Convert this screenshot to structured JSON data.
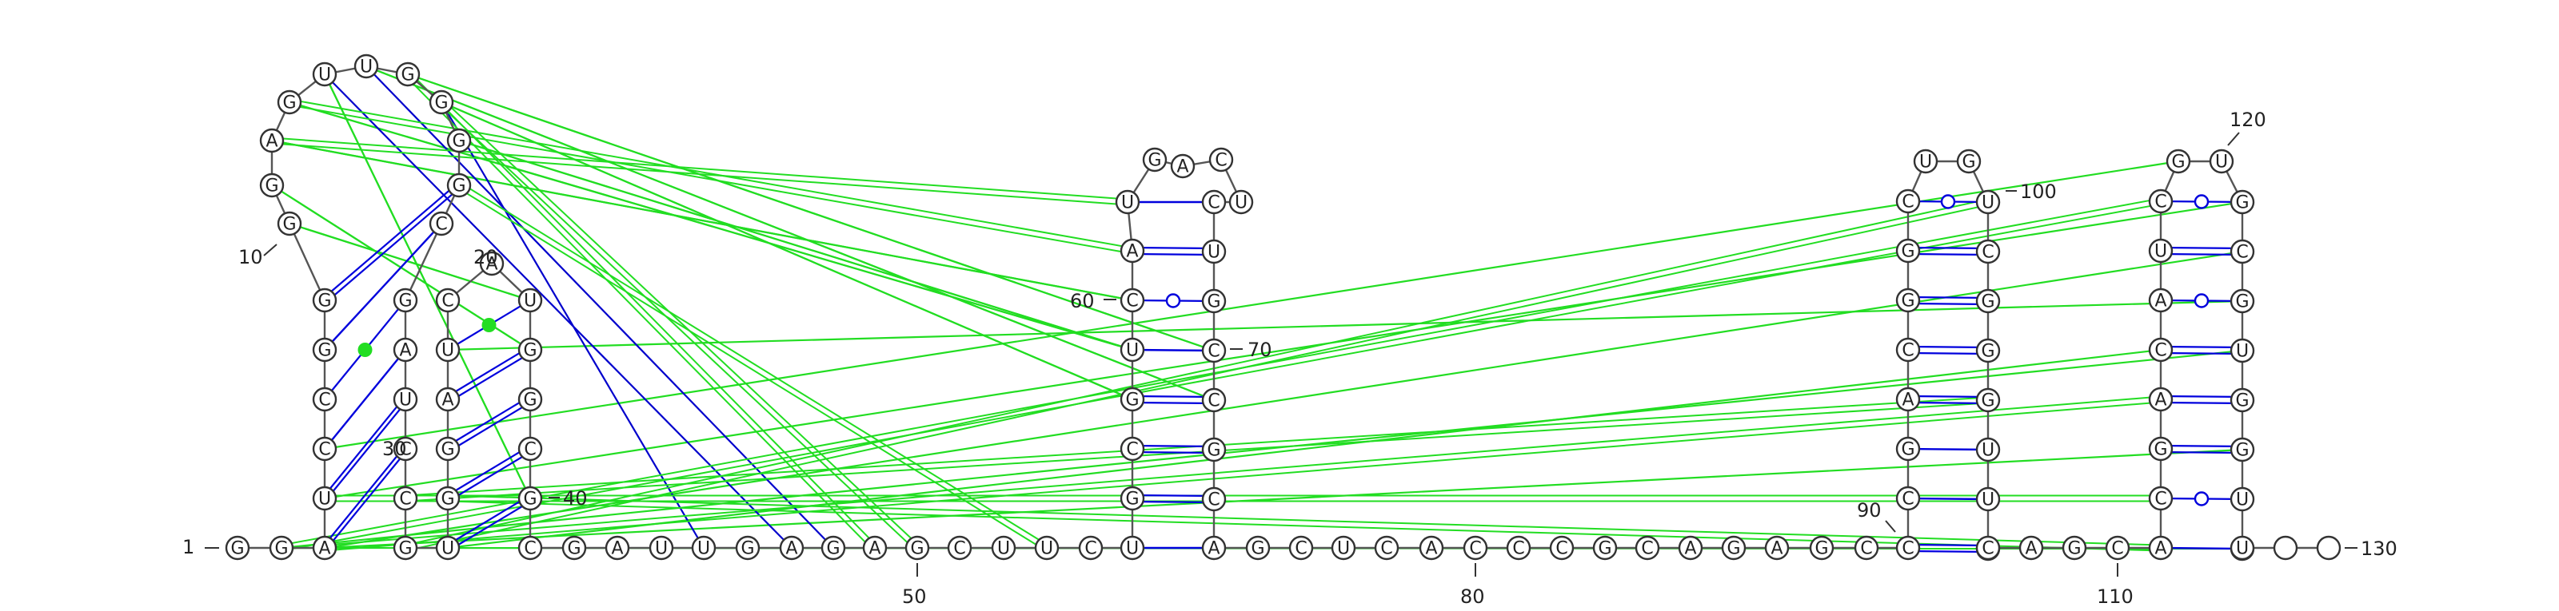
{
  "colors": {
    "canonical_pair": "#0000dd",
    "noncanonical_pair": "#0000dd",
    "interaction_line": "#22dd22",
    "interaction_line_blue": "#0000cc",
    "circle_stroke": "#333333"
  },
  "sequence": "GGAUCCGGGGAGUUGGGGCGAUCCGUGGAUCAUGGCGCGAUUGAGAGCUUCUGCGUCAUGACUCUGCCGCAGCUCACCCGCAGAGCCCGACGGCUGUCGGGUUGCAGCACGACAUCGUGCGUGGUCU",
  "numbers": [
    {
      "value": "1"
    },
    {
      "value": "10"
    },
    {
      "value": "30"
    },
    {
      "value": "20"
    },
    {
      "value": "40"
    },
    {
      "value": "50"
    },
    {
      "value": "60"
    },
    {
      "value": "70"
    },
    {
      "value": "80"
    },
    {
      "value": "90"
    },
    {
      "value": "100"
    },
    {
      "value": "110"
    },
    {
      "value": "120"
    },
    {
      "value": "130"
    }
  ]
}
